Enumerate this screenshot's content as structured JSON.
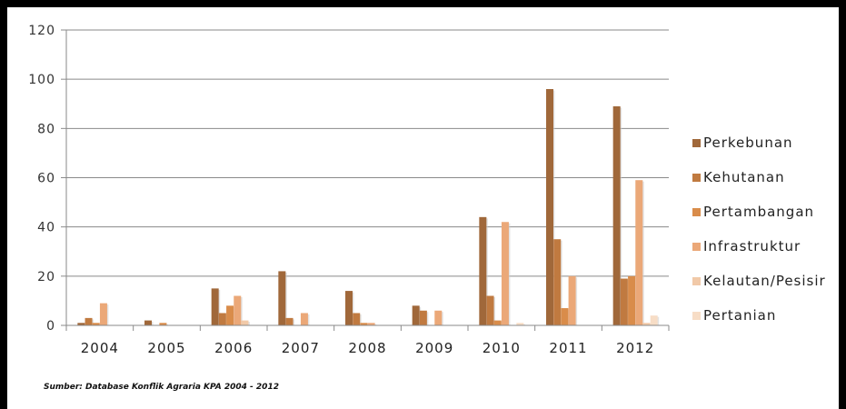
{
  "chart_data": {
    "type": "bar",
    "title": "",
    "xlabel": "",
    "ylabel": "",
    "ylim": [
      0,
      120
    ],
    "yticks": [
      "0",
      "20",
      "40",
      "60",
      "80",
      "100",
      "120"
    ],
    "grid": true,
    "legend_position": "right",
    "categories": [
      "2004",
      "2005",
      "2006",
      "2007",
      "2008",
      "2009",
      "2010",
      "2011",
      "2012"
    ],
    "series": [
      {
        "name": "Perkebunan",
        "color": "#a0683a",
        "values": [
          1,
          2,
          15,
          22,
          14,
          8,
          44,
          96,
          89
        ]
      },
      {
        "name": "Kehutanan",
        "color": "#c07a40",
        "values": [
          3,
          0,
          5,
          3,
          5,
          6,
          12,
          35,
          19
        ]
      },
      {
        "name": "Pertambangan",
        "color": "#d98c4a",
        "values": [
          1,
          1,
          8,
          0,
          1,
          0,
          2,
          7,
          20
        ]
      },
      {
        "name": "Infrastruktur",
        "color": "#eba878",
        "values": [
          9,
          0,
          12,
          5,
          1,
          6,
          42,
          20,
          59
        ]
      },
      {
        "name": "Kelautan/Pesisir",
        "color": "#f1c9a8",
        "values": [
          0,
          0,
          2,
          0,
          0,
          0,
          0,
          0,
          1
        ]
      },
      {
        "name": "Pertanian",
        "color": "#f7ddc6",
        "values": [
          0,
          0,
          0,
          0,
          0,
          0,
          1,
          0,
          4
        ]
      }
    ]
  },
  "source_note": "Sumber: Database Konflik Agraria KPA 2004 - 2012"
}
